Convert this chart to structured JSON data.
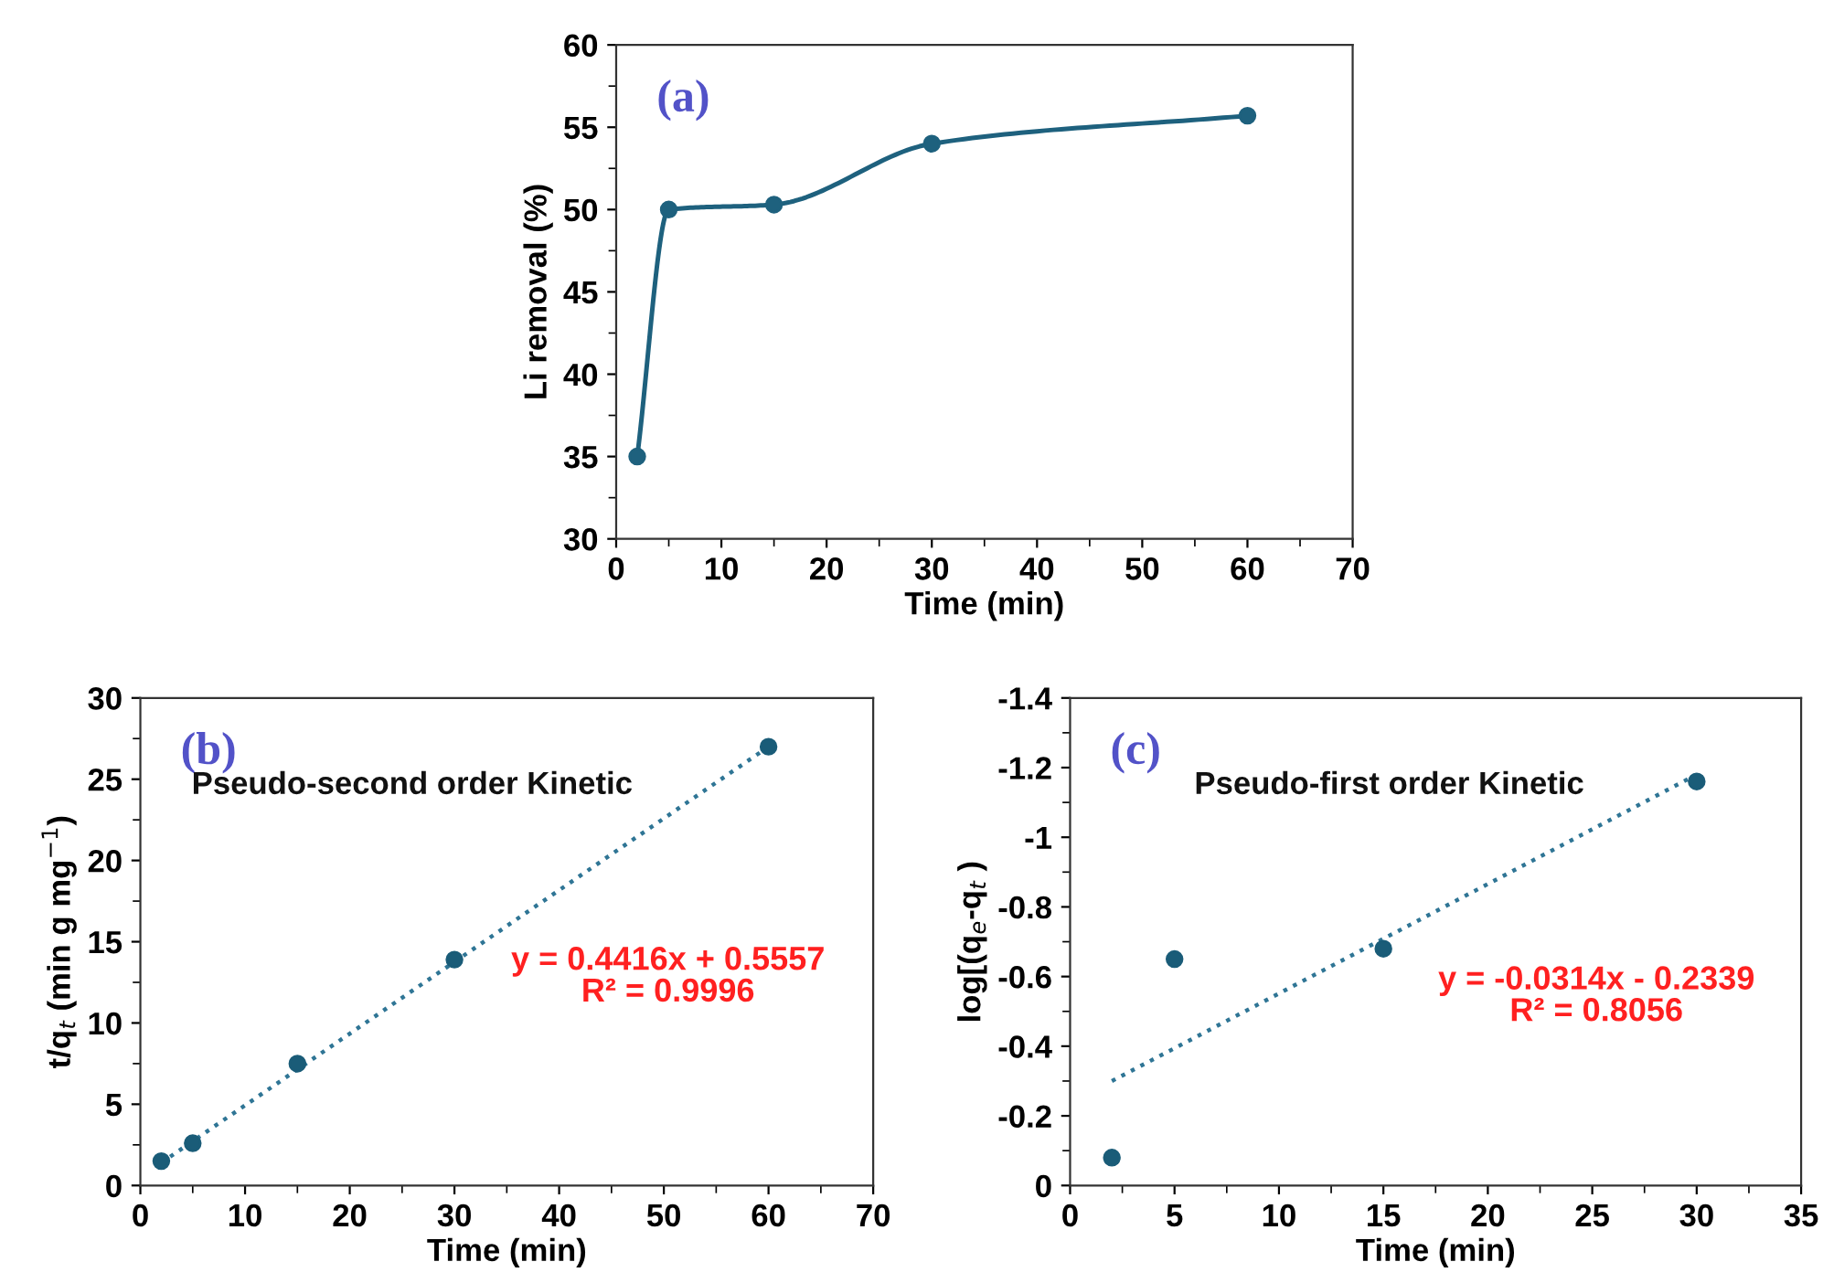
{
  "chart_data": [
    {
      "type": "line",
      "title": "(a)",
      "xlabel": "Time (min)",
      "ylabel": "Li removal (%)",
      "x": [
        2,
        5,
        15,
        30,
        60
      ],
      "series": [
        {
          "color": "#1e617e",
          "values": [
            35,
            50,
            50.3,
            54,
            55.7
          ]
        }
      ],
      "marker": "circle",
      "line_style": "solid",
      "xlim": [
        0,
        70
      ],
      "xticks": [
        0,
        10,
        20,
        30,
        40,
        50,
        60,
        70
      ],
      "ylim": [
        30,
        60
      ],
      "yticks": [
        30,
        35,
        40,
        45,
        50,
        55,
        60
      ],
      "grid": false,
      "legend": false
    },
    {
      "type": "scatter",
      "title": "(b)",
      "subtitle": "Pseudo-second order Kinetic",
      "xlabel": "Time (min)",
      "ylabel": "t/q$_{t}$ (min g mg$^{−1}$)",
      "annotations": [
        "y = 0.4416x + 0.5557",
        "R² = 0.9996"
      ],
      "x": [
        2,
        5,
        15,
        30,
        60
      ],
      "series": [
        {
          "color": "#1a5c78",
          "values": [
            1.5,
            2.6,
            7.5,
            13.9,
            27
          ]
        },
        {
          "type": "line",
          "color": "#2f7595",
          "x": [
            2,
            60
          ],
          "values": [
            1.4,
            27
          ],
          "line_style": "dotted",
          "marker": "none"
        }
      ],
      "marker": "circle",
      "xlim": [
        0,
        70
      ],
      "xticks": [
        0,
        10,
        20,
        30,
        40,
        50,
        60,
        70
      ],
      "ylim": [
        0,
        30
      ],
      "yticks": [
        0,
        5,
        10,
        15,
        20,
        25,
        30
      ],
      "grid": false,
      "legend": false
    },
    {
      "type": "scatter",
      "title": "(c)",
      "subtitle": "Pseudo-first order Kinetic",
      "xlabel": "Time (min)",
      "ylabel": "log[(q$_{e}$-q$_{t}$ )",
      "annotations": [
        "y = -0.0314x - 0.2339",
        "R² = 0.8056"
      ],
      "x": [
        2,
        5,
        15,
        30
      ],
      "series": [
        {
          "color": "#1a5c78",
          "values": [
            -0.08,
            -0.65,
            -0.68,
            -1.16
          ]
        },
        {
          "type": "line",
          "color": "#2f7595",
          "x": [
            2,
            30
          ],
          "values": [
            -0.3,
            -1.18
          ],
          "line_style": "dotted",
          "marker": "none"
        }
      ],
      "marker": "circle",
      "xlim": [
        0,
        35
      ],
      "xticks": [
        0,
        5,
        10,
        15,
        20,
        25,
        30,
        35
      ],
      "ylim": [
        0,
        -1.4
      ],
      "yticks": [
        0,
        -0.2,
        -0.4,
        -0.6,
        -0.8,
        -1,
        -1.2,
        -1.4
      ],
      "grid": false,
      "legend": false
    }
  ]
}
